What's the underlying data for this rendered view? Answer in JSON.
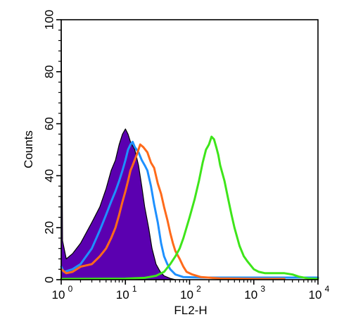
{
  "chart_data": {
    "type": "histogram",
    "title": "",
    "xlabel": "FL2-H",
    "ylabel": "Counts",
    "x_scale": "log",
    "xlim": [
      1,
      10000
    ],
    "ylim": [
      0,
      100
    ],
    "x_ticks": [
      {
        "value": 1,
        "base": "10",
        "exp": "0"
      },
      {
        "value": 10,
        "base": "10",
        "exp": "1"
      },
      {
        "value": 100,
        "base": "10",
        "exp": "2"
      },
      {
        "value": 1000,
        "base": "10",
        "exp": "3"
      },
      {
        "value": 10000,
        "base": "10",
        "exp": "4"
      }
    ],
    "y_ticks": [
      {
        "value": 0,
        "label": "0"
      },
      {
        "value": 20,
        "label": "20"
      },
      {
        "value": 40,
        "label": "40"
      },
      {
        "value": 60,
        "label": "60"
      },
      {
        "value": 80,
        "label": "80"
      },
      {
        "value": 100,
        "label": "100"
      }
    ],
    "grid": false,
    "series": [
      {
        "color": "#5b00b0",
        "fill": true,
        "outline_color": "#000000",
        "points": [
          [
            1,
            100
          ],
          [
            1.05,
            15
          ],
          [
            1.2,
            8
          ],
          [
            1.5,
            10
          ],
          [
            2,
            14
          ],
          [
            3,
            22
          ],
          [
            4,
            28
          ],
          [
            5,
            35
          ],
          [
            6,
            42
          ],
          [
            7,
            46
          ],
          [
            8,
            52
          ],
          [
            9,
            56
          ],
          [
            10,
            58
          ],
          [
            11,
            56
          ],
          [
            12,
            53
          ],
          [
            14,
            50
          ],
          [
            16,
            44
          ],
          [
            18,
            36
          ],
          [
            20,
            28
          ],
          [
            23,
            20
          ],
          [
            26,
            12
          ],
          [
            30,
            6
          ],
          [
            35,
            3
          ],
          [
            40,
            1.5
          ],
          [
            50,
            0.5
          ],
          [
            60,
            0
          ]
        ]
      },
      {
        "color": "#1e90ff",
        "fill": false,
        "points": [
          [
            1,
            5
          ],
          [
            1.1,
            3
          ],
          [
            1.5,
            4
          ],
          [
            2,
            6
          ],
          [
            3,
            12
          ],
          [
            4,
            19
          ],
          [
            5,
            25
          ],
          [
            6,
            30
          ],
          [
            7,
            34
          ],
          [
            8,
            38
          ],
          [
            9,
            42
          ],
          [
            10,
            46
          ],
          [
            11,
            50
          ],
          [
            12,
            52
          ],
          [
            13,
            53
          ],
          [
            14,
            51
          ],
          [
            16,
            49
          ],
          [
            18,
            46
          ],
          [
            20,
            44
          ],
          [
            22,
            42
          ],
          [
            25,
            36
          ],
          [
            28,
            29
          ],
          [
            32,
            22
          ],
          [
            36,
            14
          ],
          [
            40,
            9
          ],
          [
            45,
            6
          ],
          [
            50,
            4
          ],
          [
            60,
            2
          ],
          [
            80,
            1
          ],
          [
            150,
            0.8
          ],
          [
            400,
            0.8
          ],
          [
            1000,
            0.8
          ],
          [
            3000,
            0.8
          ],
          [
            10000,
            0.8
          ]
        ]
      },
      {
        "color": "#ff6a1a",
        "fill": false,
        "points": [
          [
            1,
            4
          ],
          [
            1.2,
            2.5
          ],
          [
            1.5,
            3
          ],
          [
            2,
            5
          ],
          [
            3,
            6
          ],
          [
            4,
            9
          ],
          [
            5,
            12
          ],
          [
            6,
            16
          ],
          [
            7,
            20
          ],
          [
            8,
            25
          ],
          [
            9,
            30
          ],
          [
            10,
            34
          ],
          [
            11,
            38
          ],
          [
            12,
            42
          ],
          [
            13,
            44
          ],
          [
            15,
            48
          ],
          [
            17,
            52
          ],
          [
            19,
            51
          ],
          [
            22,
            49
          ],
          [
            25,
            45
          ],
          [
            28,
            43
          ],
          [
            32,
            37
          ],
          [
            36,
            33
          ],
          [
            40,
            28
          ],
          [
            45,
            23
          ],
          [
            50,
            18
          ],
          [
            55,
            14
          ],
          [
            60,
            11
          ],
          [
            70,
            8
          ],
          [
            80,
            5
          ],
          [
            90,
            3
          ],
          [
            110,
            2
          ],
          [
            150,
            1
          ],
          [
            300,
            0.5
          ],
          [
            1000,
            0.3
          ],
          [
            3000,
            0.3
          ]
        ]
      },
      {
        "color": "#3ee51a",
        "fill": false,
        "points": [
          [
            1,
            0.3
          ],
          [
            10,
            0.4
          ],
          [
            20,
            0.7
          ],
          [
            30,
            1.5
          ],
          [
            40,
            3
          ],
          [
            50,
            6
          ],
          [
            60,
            9
          ],
          [
            70,
            12
          ],
          [
            80,
            16
          ],
          [
            100,
            24
          ],
          [
            120,
            31
          ],
          [
            140,
            38
          ],
          [
            160,
            45
          ],
          [
            180,
            50
          ],
          [
            200,
            52
          ],
          [
            220,
            55
          ],
          [
            240,
            54
          ],
          [
            260,
            51
          ],
          [
            280,
            48
          ],
          [
            300,
            44
          ],
          [
            350,
            38
          ],
          [
            400,
            31
          ],
          [
            450,
            25
          ],
          [
            500,
            20
          ],
          [
            600,
            13
          ],
          [
            700,
            9
          ],
          [
            800,
            7
          ],
          [
            1000,
            4
          ],
          [
            1200,
            3
          ],
          [
            1500,
            2.5
          ],
          [
            2000,
            2.5
          ],
          [
            3000,
            2.5
          ],
          [
            4000,
            2
          ],
          [
            5000,
            1.2
          ],
          [
            7000,
            0.5
          ],
          [
            10000,
            0.3
          ]
        ]
      }
    ]
  }
}
